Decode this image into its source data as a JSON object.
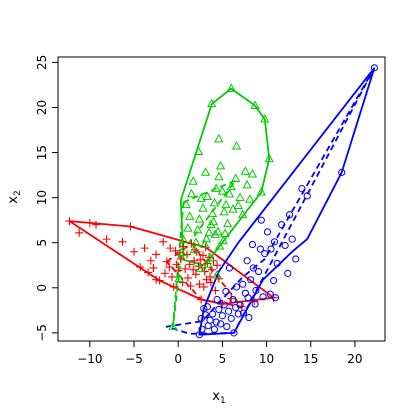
{
  "chart_data": {
    "type": "scatter",
    "title": "",
    "xlabel": "x",
    "xlabel_sub": "1",
    "ylabel": "x",
    "ylabel_sub": "2",
    "xlim": [
      -13.6,
      23.4
    ],
    "ylim": [
      -5.9,
      25.6
    ],
    "x_ticks": [
      -10,
      -5,
      0,
      5,
      10,
      15,
      20
    ],
    "y_ticks": [
      -5,
      0,
      5,
      10,
      15,
      20,
      25
    ],
    "grid": false,
    "legend": "none",
    "series": [
      {
        "marker": "plus",
        "color": "#ff0000",
        "points": [
          [
            -12.3,
            7.4
          ],
          [
            -11.2,
            6.1
          ],
          [
            -10.0,
            7.2
          ],
          [
            -9.3,
            7.0
          ],
          [
            -8.1,
            5.4
          ],
          [
            -6.3,
            5.1
          ],
          [
            -5.4,
            6.8
          ],
          [
            -5.0,
            4.0
          ],
          [
            -4.3,
            2.3
          ],
          [
            -3.8,
            4.4
          ],
          [
            -3.1,
            3.0
          ],
          [
            -2.8,
            2.2
          ],
          [
            -2.5,
            3.7
          ],
          [
            -2.1,
            0.8
          ],
          [
            -1.7,
            5.1
          ],
          [
            -1.3,
            2.9
          ],
          [
            -1.0,
            2.3
          ],
          [
            -0.7,
            1.2
          ],
          [
            -0.3,
            4.1
          ],
          [
            -0.2,
            2.6
          ],
          [
            0.0,
            1.9
          ],
          [
            0.3,
            3.2
          ],
          [
            0.5,
            0.6
          ],
          [
            0.6,
            4.6
          ],
          [
            0.8,
            2.1
          ],
          [
            1.0,
            3.7
          ],
          [
            1.1,
            1.1
          ],
          [
            1.3,
            2.6
          ],
          [
            1.5,
            4.9
          ],
          [
            1.7,
            2.0
          ],
          [
            1.8,
            3.0
          ],
          [
            2.0,
            1.5
          ],
          [
            2.1,
            4.0
          ],
          [
            2.3,
            2.4
          ],
          [
            2.4,
            0.4
          ],
          [
            2.5,
            3.1
          ],
          [
            2.6,
            -1.3
          ],
          [
            2.7,
            2.2
          ],
          [
            2.8,
            3.6
          ],
          [
            3.0,
            1.8
          ],
          [
            3.1,
            4.5
          ],
          [
            3.2,
            0.9
          ],
          [
            3.3,
            2.7
          ],
          [
            3.5,
            3.4
          ],
          [
            3.6,
            1.2
          ],
          [
            3.8,
            2.0
          ],
          [
            4.0,
            3.0
          ],
          [
            4.2,
            -0.3
          ],
          [
            4.4,
            2.5
          ],
          [
            4.6,
            1.0
          ],
          [
            5.0,
            -1.8
          ],
          [
            6.0,
            -1.2
          ],
          [
            7.2,
            -2.1
          ],
          [
            8.6,
            -1.5
          ],
          [
            10.8,
            -1.1
          ],
          [
            -2.5,
            0.9
          ],
          [
            -1.5,
            1.6
          ],
          [
            -0.5,
            0.1
          ],
          [
            0.2,
            3.9
          ],
          [
            1.4,
            0.2
          ],
          [
            2.9,
            0.1
          ],
          [
            -3.4,
            1.7
          ],
          [
            -0.9,
            4.4
          ],
          [
            1.9,
            4.2
          ],
          [
            3.7,
            0.6
          ]
        ]
      },
      {
        "marker": "triangle",
        "color": "#00cd00",
        "points": [
          [
            3.8,
            20.4
          ],
          [
            6.0,
            22.1
          ],
          [
            8.7,
            20.2
          ],
          [
            9.8,
            18.7
          ],
          [
            10.3,
            14.3
          ],
          [
            9.4,
            10.6
          ],
          [
            8.1,
            9.8
          ],
          [
            7.3,
            8.1
          ],
          [
            6.5,
            12.1
          ],
          [
            6.0,
            11.2
          ],
          [
            5.8,
            10.4
          ],
          [
            5.4,
            9.2
          ],
          [
            5.0,
            10.7
          ],
          [
            4.8,
            13.5
          ],
          [
            4.6,
            12.3
          ],
          [
            4.3,
            11.0
          ],
          [
            4.1,
            9.4
          ],
          [
            3.9,
            8.2
          ],
          [
            3.7,
            7.0
          ],
          [
            3.5,
            6.1
          ],
          [
            3.2,
            5.4
          ],
          [
            3.0,
            4.8
          ],
          [
            2.8,
            8.8
          ],
          [
            2.6,
            9.9
          ],
          [
            2.4,
            7.6
          ],
          [
            2.2,
            6.4
          ],
          [
            2.0,
            5.0
          ],
          [
            1.8,
            4.2
          ],
          [
            1.5,
            10.4
          ],
          [
            1.3,
            7.9
          ],
          [
            1.1,
            6.6
          ],
          [
            0.9,
            9.2
          ],
          [
            0.6,
            5.3
          ],
          [
            0.4,
            3.9
          ],
          [
            0.1,
            1.0
          ],
          [
            -0.6,
            -4.3
          ],
          [
            1.7,
            11.8
          ],
          [
            3.3,
            10.1
          ],
          [
            4.0,
            7.3
          ],
          [
            4.5,
            6.2
          ],
          [
            5.2,
            8.4
          ],
          [
            5.6,
            7.1
          ],
          [
            6.2,
            8.7
          ],
          [
            6.8,
            9.1
          ],
          [
            7.0,
            10.0
          ],
          [
            7.8,
            11.4
          ],
          [
            8.4,
            12.6
          ],
          [
            5.1,
            5.2
          ],
          [
            4.7,
            4.6
          ],
          [
            3.6,
            3.3
          ],
          [
            3.4,
            2.6
          ],
          [
            2.5,
            2.1
          ],
          [
            4.4,
            1.4
          ],
          [
            2.3,
            15.1
          ],
          [
            6.6,
            15.7
          ],
          [
            3.1,
            12.8
          ],
          [
            7.6,
            12.9
          ],
          [
            4.2,
            5.9
          ],
          [
            5.3,
            6.0
          ],
          [
            4.6,
            16.5
          ]
        ]
      },
      {
        "marker": "circle",
        "color": "#0000ff",
        "points": [
          [
            22.2,
            24.4
          ],
          [
            18.5,
            12.8
          ],
          [
            14.6,
            10.2
          ],
          [
            14.0,
            11.0
          ],
          [
            12.9,
            5.4
          ],
          [
            12.6,
            8.1
          ],
          [
            12.1,
            4.7
          ],
          [
            11.7,
            7.0
          ],
          [
            11.2,
            2.7
          ],
          [
            10.9,
            5.1
          ],
          [
            10.5,
            4.3
          ],
          [
            10.1,
            6.2
          ],
          [
            9.8,
            3.8
          ],
          [
            9.4,
            7.5
          ],
          [
            9.1,
            1.8
          ],
          [
            8.8,
            -0.3
          ],
          [
            8.5,
            2.2
          ],
          [
            8.2,
            0.9
          ],
          [
            7.9,
            -1.1
          ],
          [
            7.6,
            -0.6
          ],
          [
            7.3,
            0.4
          ],
          [
            7.0,
            -1.9
          ],
          [
            6.8,
            -2.9
          ],
          [
            6.5,
            -2.2
          ],
          [
            6.2,
            -1.3
          ],
          [
            6.0,
            -3.4
          ],
          [
            5.7,
            -2.6
          ],
          [
            5.5,
            -4.3
          ],
          [
            5.2,
            -1.9
          ],
          [
            5.0,
            -3.1
          ],
          [
            4.8,
            -4.0
          ],
          [
            4.6,
            -2.4
          ],
          [
            4.3,
            -3.8
          ],
          [
            4.1,
            -4.6
          ],
          [
            3.9,
            -2.9
          ],
          [
            3.6,
            -3.6
          ],
          [
            3.4,
            -4.2
          ],
          [
            3.1,
            -3.0
          ],
          [
            2.9,
            -2.3
          ],
          [
            2.7,
            -4.6
          ],
          [
            2.4,
            -5.2
          ],
          [
            2.6,
            -3.4
          ],
          [
            3.3,
            -2.1
          ],
          [
            4.4,
            -1.3
          ],
          [
            5.4,
            -0.4
          ],
          [
            6.6,
            0.1
          ],
          [
            7.4,
            -2.8
          ],
          [
            8.0,
            -3.3
          ],
          [
            8.7,
            -1.8
          ],
          [
            9.6,
            -1.0
          ],
          [
            10.4,
            -0.7
          ],
          [
            11.0,
            -1.1
          ],
          [
            6.3,
            -5.0
          ],
          [
            5.8,
            2.2
          ],
          [
            7.8,
            3.0
          ],
          [
            9.3,
            4.3
          ],
          [
            8.4,
            4.8
          ],
          [
            10.8,
            0.8
          ],
          [
            12.4,
            1.6
          ],
          [
            13.3,
            3.2
          ]
        ]
      }
    ],
    "hulls": [
      {
        "color": "#ff0000",
        "style": "solid",
        "points": [
          [
            -12.3,
            7.4
          ],
          [
            -5.4,
            6.8
          ],
          [
            1.5,
            4.9
          ],
          [
            3.1,
            4.5
          ],
          [
            10.8,
            -1.1
          ],
          [
            5.0,
            -1.8
          ],
          [
            2.6,
            -1.3
          ],
          [
            -2.1,
            0.8
          ],
          [
            -12.3,
            7.4
          ]
        ]
      },
      {
        "color": "#ff0000",
        "style": "dashed",
        "points": [
          [
            -1.3,
            2.9
          ],
          [
            1.5,
            4.9
          ],
          [
            4.6,
            1.0
          ],
          [
            7.2,
            -2.1
          ],
          [
            2.6,
            -1.3
          ],
          [
            -1.3,
            2.9
          ]
        ]
      },
      {
        "color": "#00cd00",
        "style": "solid",
        "points": [
          [
            3.8,
            20.4
          ],
          [
            6.0,
            22.1
          ],
          [
            8.7,
            20.2
          ],
          [
            9.8,
            18.7
          ],
          [
            10.3,
            14.3
          ],
          [
            9.4,
            10.6
          ],
          [
            3.0,
            2.5
          ],
          [
            0.6,
            3.1
          ],
          [
            0.3,
            9.7
          ],
          [
            3.8,
            20.4
          ]
        ]
      },
      {
        "color": "#00cd00",
        "style": "dashed",
        "points": [
          [
            0.6,
            9.5
          ],
          [
            -0.6,
            -4.3
          ],
          [
            0.4,
            3.9
          ],
          [
            6.5,
            11.9
          ],
          [
            0.6,
            9.5
          ]
        ]
      },
      {
        "color": "#0000ff",
        "style": "solid",
        "points": [
          [
            22.2,
            24.4
          ],
          [
            18.5,
            12.8
          ],
          [
            14.6,
            5.4
          ],
          [
            12.9,
            4.0
          ],
          [
            9.6,
            0.9
          ],
          [
            6.3,
            -5.0
          ],
          [
            2.4,
            -5.2
          ],
          [
            2.9,
            -2.3
          ],
          [
            4.6,
            1.8
          ],
          [
            6.8,
            5.0
          ],
          [
            22.2,
            24.4
          ]
        ]
      },
      {
        "color": "#0000ff",
        "style": "dashed",
        "points": [
          [
            22.2,
            24.4
          ],
          [
            9.8,
            3.2
          ],
          [
            7.3,
            1.2
          ],
          [
            2.7,
            -3.7
          ],
          [
            -1.3,
            -4.3
          ],
          [
            1.3,
            -5.1
          ],
          [
            6.3,
            -5.0
          ],
          [
            22.2,
            24.4
          ]
        ]
      }
    ]
  }
}
